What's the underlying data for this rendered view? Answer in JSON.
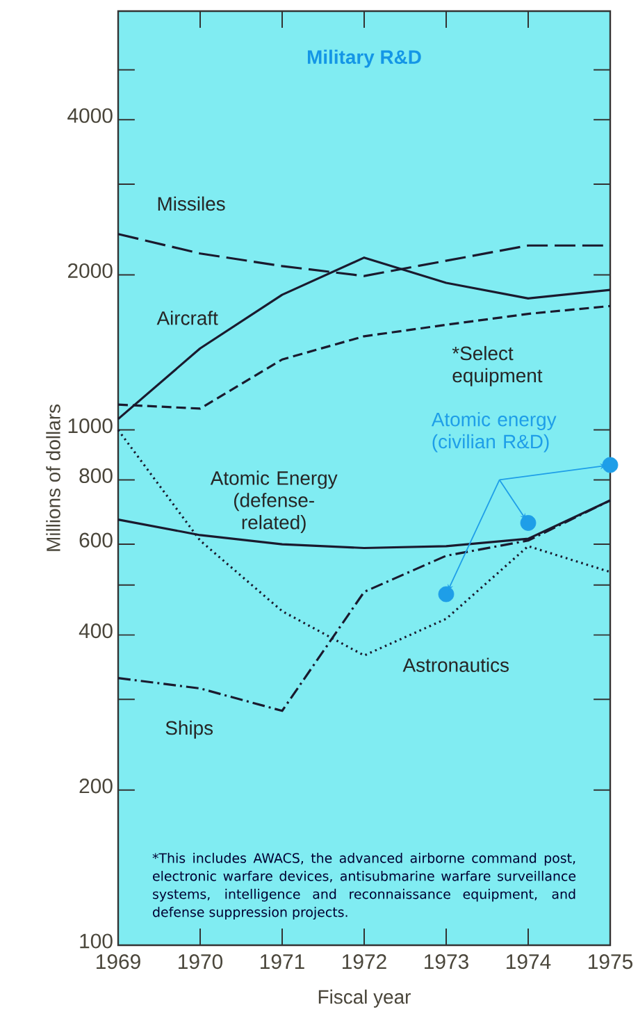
{
  "chart_data": {
    "type": "line",
    "title": "Military R&D",
    "xlabel": "Fiscal year",
    "ylabel": "Millions of dollars",
    "x": [
      1969,
      1970,
      1971,
      1972,
      1973,
      1974,
      1975
    ],
    "xlim": [
      1969,
      1975
    ],
    "xticks": [
      1969,
      1970,
      1971,
      1972,
      1973,
      1974,
      1975
    ],
    "ylim": [
      100,
      6500
    ],
    "log": "y",
    "yticks": [
      100,
      200,
      {
        "value": 300,
        "label": null
      },
      400,
      {
        "value": 500,
        "label": null
      },
      600,
      800,
      1000,
      2000,
      {
        "value": 3000,
        "label": null
      },
      4000,
      {
        "value": 5000,
        "label": null
      }
    ],
    "series": [
      {
        "name": "Missiles",
        "color": "#1a1a2e",
        "line_style": "longdashed",
        "values": [
          2400,
          2200,
          2080,
          1990,
          2130,
          2280,
          2280
        ]
      },
      {
        "name": "Aircraft",
        "color": "#1a1a2e",
        "line_style": "solid",
        "values": [
          1050,
          1440,
          1830,
          2160,
          1930,
          1800,
          1870
        ]
      },
      {
        "name": "*Select equipment",
        "color": "#1a1a2e",
        "line_style": "dashed",
        "values": [
          1120,
          1100,
          1370,
          1520,
          1600,
          1680,
          1740
        ]
      },
      {
        "name": "Atomic Energy (defense-related)",
        "color": "#1a1a2e",
        "line_style": "solid",
        "values": [
          670,
          625,
          600,
          590,
          595,
          615,
          730
        ]
      },
      {
        "name": "Astronautics",
        "color": "#1a1a2e",
        "line_style": "dotted",
        "values": [
          1000,
          610,
          445,
          365,
          430,
          595,
          530
        ]
      },
      {
        "name": "Ships",
        "color": "#1a1a2e",
        "line_style": "dashdot",
        "values": [
          330,
          315,
          285,
          485,
          570,
          610,
          730
        ]
      },
      {
        "name": "Atomic energy (civilian R&D)",
        "type": "scatter",
        "marker": "circle",
        "color": "#1e9ee8",
        "x": [
          1973,
          1974,
          1975
        ],
        "values": [
          480,
          660,
          855
        ]
      }
    ],
    "annotations": [
      "*This includes AWACS, the advanced airborne command post, electronic warfare devices, antisubmarine warfare surveillance systems, intelligence and reconnaissance equipment, and defense suppression projects."
    ]
  }
}
